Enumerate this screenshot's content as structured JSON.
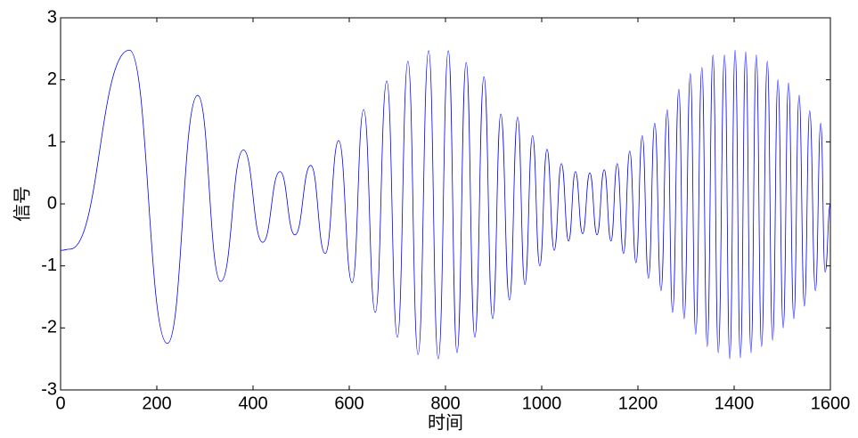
{
  "chart_data": {
    "type": "line",
    "xlabel": "时间",
    "ylabel": "信号",
    "color": "#0000ff",
    "xlim": [
      0,
      1600
    ],
    "ylim": [
      -3,
      3
    ],
    "xticks": [
      0,
      200,
      400,
      600,
      800,
      1000,
      1200,
      1400,
      1600
    ],
    "yticks": [
      -3,
      -2,
      -1,
      0,
      1,
      2,
      3
    ],
    "x": [
      0,
      20,
      143,
      222,
      285,
      333,
      380,
      420,
      456,
      487,
      520,
      550,
      578,
      606,
      630,
      654,
      678,
      700,
      722,
      743,
      765,
      785,
      806,
      824,
      843,
      861,
      880,
      898,
      915,
      933,
      950,
      965,
      981,
      996,
      1011,
      1026,
      1041,
      1056,
      1070,
      1085,
      1100,
      1115,
      1130,
      1144,
      1157,
      1170,
      1183,
      1196,
      1209,
      1222,
      1235,
      1248,
      1261,
      1272,
      1285,
      1296,
      1309,
      1320,
      1333,
      1344,
      1356,
      1367,
      1380,
      1391,
      1402,
      1413,
      1424,
      1435,
      1446,
      1457,
      1469,
      1480,
      1491,
      1502,
      1513,
      1524,
      1535,
      1546,
      1557,
      1569,
      1580,
      1589,
      1600
    ],
    "values": [
      -0.75,
      -0.73,
      2.48,
      -2.25,
      1.75,
      -1.25,
      0.87,
      -0.62,
      0.52,
      -0.5,
      0.62,
      -0.8,
      1.02,
      -1.27,
      1.52,
      -1.75,
      1.98,
      -2.15,
      2.3,
      -2.43,
      2.47,
      -2.5,
      2.47,
      -2.4,
      2.28,
      -2.15,
      2.05,
      -1.85,
      1.45,
      -1.55,
      1.4,
      -1.3,
      1.1,
      -1.0,
      0.88,
      -0.75,
      0.65,
      -0.6,
      0.52,
      -0.48,
      0.5,
      -0.5,
      0.55,
      -0.6,
      0.65,
      -0.8,
      0.85,
      -0.95,
      1.1,
      -1.2,
      1.3,
      -1.4,
      1.52,
      -1.75,
      1.85,
      -1.85,
      2.1,
      -2.1,
      2.2,
      -2.3,
      2.4,
      -2.4,
      2.4,
      -2.5,
      2.48,
      -2.48,
      2.45,
      -2.4,
      2.4,
      -2.3,
      2.3,
      -2.2,
      2.0,
      -2.0,
      1.95,
      -1.85,
      1.75,
      -1.65,
      1.5,
      -1.4,
      1.3,
      -1.1,
      0
    ]
  }
}
